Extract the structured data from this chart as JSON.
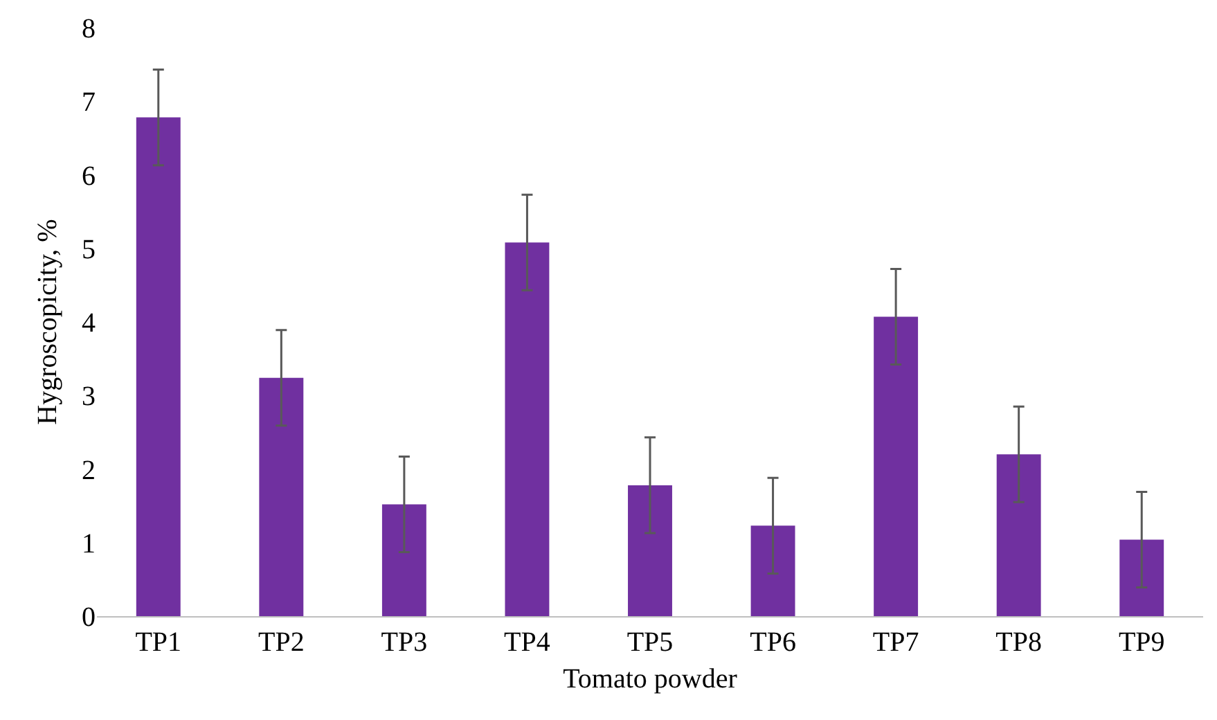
{
  "chart_data": {
    "type": "bar",
    "xlabel": "Tomato powder",
    "ylabel": "Hygroscopicity, %",
    "categories": [
      "TP1",
      "TP2",
      "TP3",
      "TP4",
      "TP5",
      "TP6",
      "TP7",
      "TP8",
      "TP9"
    ],
    "values": [
      6.78,
      3.24,
      1.52,
      5.08,
      1.78,
      1.23,
      4.07,
      2.2,
      1.04
    ],
    "errors": [
      0.65,
      0.65,
      0.65,
      0.65,
      0.65,
      0.65,
      0.65,
      0.65,
      0.65
    ],
    "color": "#7030a0",
    "ylim": [
      0,
      8
    ],
    "yticks": [
      0,
      1,
      2,
      3,
      4,
      5,
      6,
      7,
      8
    ],
    "grid": false
  }
}
